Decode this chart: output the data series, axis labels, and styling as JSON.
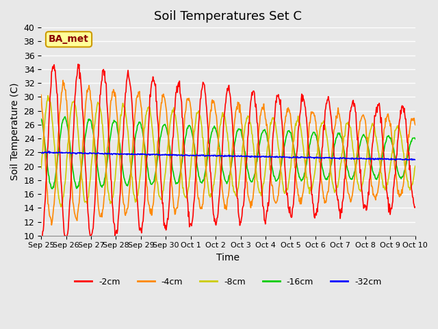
{
  "title": "Soil Temperatures Set C",
  "xlabel": "Time",
  "ylabel": "Soil Temperature (C)",
  "ylim": [
    10,
    40
  ],
  "annotation_text": "BA_met",
  "annotation_bg": "#ffff99",
  "annotation_border": "#cc9900",
  "bg_color": "#e8e8e8",
  "series_colors": {
    "-2cm": "#ff0000",
    "-4cm": "#ff8800",
    "-8cm": "#cccc00",
    "-16cm": "#00cc00",
    "-32cm": "#0000ff"
  },
  "tick_labels": [
    "Sep 25",
    "Sep 26",
    "Sep 27",
    "Sep 28",
    "Sep 29",
    "Sep 30",
    "Oct 1",
    "Oct 2",
    "Oct 3",
    "Oct 4",
    "Oct 5",
    "Oct 6",
    "Oct 7",
    "Oct 8",
    "Oct 9",
    "Oct 10"
  ],
  "num_days": 15
}
